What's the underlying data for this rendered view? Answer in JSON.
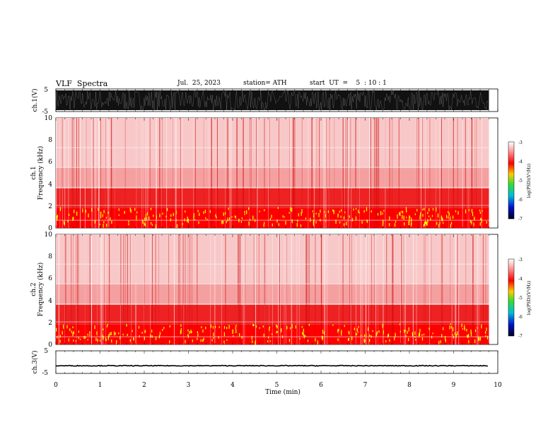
{
  "header": {
    "title": "VLF  Spectra",
    "date": "Jul.  25, 2023",
    "station": "station= ATH",
    "start_ut": "start  UT  =    5  : 10 : 1"
  },
  "chart_data": [
    {
      "type": "line",
      "name": "ch1-waveform",
      "ylabel": "ch.1(V)",
      "ylim": [
        -5,
        5
      ],
      "yticks": [
        "5",
        "-5"
      ],
      "xlim": [
        0,
        10
      ],
      "description_values": {
        "amplitude_range": [
          -5,
          5
        ],
        "data_end_min": 9.8
      }
    },
    {
      "type": "heatmap",
      "name": "ch1-spectrogram",
      "ylabel_line1": "ch.1",
      "ylabel_line2": "Frequency  (kHz)",
      "ylim": [
        0,
        10
      ],
      "yticks": [
        "0",
        "2",
        "4",
        "6",
        "8",
        "10"
      ],
      "xlim": [
        0,
        10
      ],
      "data_end_min": 9.8,
      "bands_khz": [
        {
          "from": 0.0,
          "to": 1.8,
          "level": "high"
        },
        {
          "from": 1.8,
          "to": 3.6,
          "level": "mid"
        },
        {
          "from": 3.6,
          "to": 5.5,
          "level": "low-mid"
        },
        {
          "from": 5.5,
          "to": 10.0,
          "level": "low"
        }
      ],
      "colorbar": {
        "label": "log(PSD)(V²/Hz)",
        "ticks": [
          "-3",
          "-4",
          "-5",
          "-6",
          "-7"
        ],
        "range": [
          -7,
          -3
        ]
      }
    },
    {
      "type": "heatmap",
      "name": "ch2-spectrogram",
      "ylabel_line1": "ch.2",
      "ylabel_line2": "Frequency  (kHz)",
      "ylim": [
        0,
        10
      ],
      "yticks": [
        "0",
        "2",
        "4",
        "6",
        "8",
        "10"
      ],
      "xlim": [
        0,
        10
      ],
      "data_end_min": 9.8,
      "bands_khz": [
        {
          "from": 0.0,
          "to": 1.8,
          "level": "high"
        },
        {
          "from": 1.8,
          "to": 3.6,
          "level": "mid"
        },
        {
          "from": 3.6,
          "to": 5.5,
          "level": "low-mid"
        },
        {
          "from": 5.5,
          "to": 10.0,
          "level": "low"
        }
      ],
      "colorbar": {
        "label": "log(PSD)(V²/Hz)",
        "ticks": [
          "-3",
          "-4",
          "-5",
          "-6",
          "-7"
        ],
        "range": [
          -7,
          -3
        ]
      }
    },
    {
      "type": "line",
      "name": "ch3-waveform",
      "ylabel": "ch.3(V)",
      "ylim": [
        -5,
        5
      ],
      "yticks": [
        "5",
        "-5"
      ],
      "xlim": [
        0,
        10
      ],
      "level_v": -1.6,
      "data_end_min": 9.8
    }
  ],
  "xaxis": {
    "label": "Time  (min)",
    "ticks": [
      "0",
      "1",
      "2",
      "3",
      "4",
      "5",
      "6",
      "7",
      "8",
      "9",
      "10"
    ]
  },
  "colors": {
    "spectrogram_low": "#f8c8c8",
    "spectrogram_mid": "#ee2222",
    "spectrogram_high": "#ff0000",
    "spectrogram_peak": "#ffff00",
    "waveform": "#000000"
  }
}
